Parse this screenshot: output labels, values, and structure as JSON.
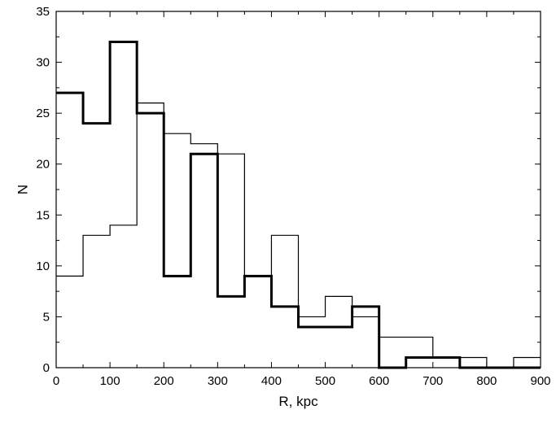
{
  "chart_data": {
    "type": "histogram",
    "xlabel": "R, kpc",
    "ylabel": "N",
    "xlim": [
      0,
      900
    ],
    "ylim": [
      0,
      35
    ],
    "grid": false,
    "legend": "none",
    "x_ticks": [
      0,
      100,
      200,
      300,
      400,
      500,
      600,
      700,
      800,
      900
    ],
    "y_ticks": [
      0,
      5,
      10,
      15,
      20,
      25,
      30,
      35
    ],
    "bin_edges": [
      0,
      50,
      100,
      150,
      200,
      250,
      300,
      350,
      400,
      450,
      500,
      550,
      600,
      650,
      700,
      750,
      800,
      850,
      900
    ],
    "series": [
      {
        "style": "thick",
        "color": "#000000",
        "values": [
          27,
          24,
          32,
          25,
          9,
          21,
          7,
          9,
          6,
          4,
          4,
          6,
          0,
          1,
          1,
          0,
          0,
          0
        ]
      },
      {
        "style": "thin",
        "color": "#000000",
        "values": [
          9,
          13,
          14,
          26,
          23,
          22,
          21,
          9,
          13,
          5,
          7,
          5,
          3,
          3,
          1,
          1,
          0,
          1
        ]
      }
    ]
  }
}
